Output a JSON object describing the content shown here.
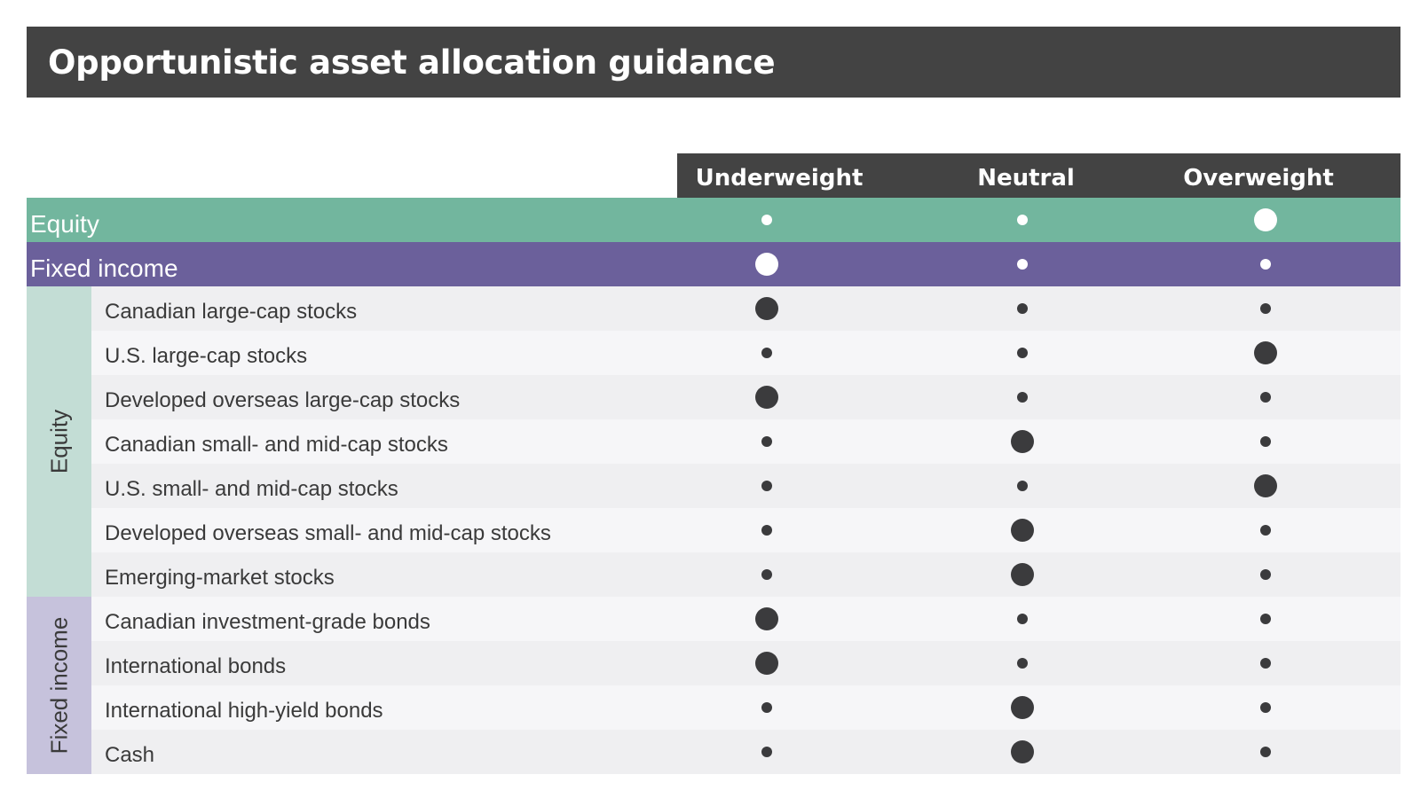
{
  "title": "Opportunistic asset allocation guidance",
  "colors": {
    "header_bg": "#434343",
    "equity_summary": "#72b69e",
    "fixed_income_summary": "#6b609b",
    "equity_group": "#c3ddd5",
    "fixed_income_group": "#c6c2dc",
    "row_a": "#efeff1",
    "row_b": "#f6f6f8",
    "dot_dark": "#3b3b3d",
    "dot_light": "#ffffff"
  },
  "chart_data": {
    "type": "table",
    "columns": [
      "Underweight",
      "Neutral",
      "Overweight"
    ],
    "summary_rows": [
      {
        "label": "Equity",
        "selected": "Overweight"
      },
      {
        "label": "Fixed income",
        "selected": "Underweight"
      }
    ],
    "groups": [
      {
        "name": "Equity",
        "rows": [
          {
            "label": "Canadian large-cap stocks",
            "selected": "Underweight"
          },
          {
            "label": "U.S. large-cap stocks",
            "selected": "Overweight"
          },
          {
            "label": "Developed overseas large-cap stocks",
            "selected": "Underweight"
          },
          {
            "label": "Canadian small- and mid-cap stocks",
            "selected": "Neutral"
          },
          {
            "label": "U.S. small- and mid-cap stocks",
            "selected": "Overweight"
          },
          {
            "label": "Developed overseas small- and mid-cap stocks",
            "selected": "Neutral"
          },
          {
            "label": "Emerging-market stocks",
            "selected": "Neutral"
          }
        ]
      },
      {
        "name": "Fixed income",
        "rows": [
          {
            "label": "Canadian investment-grade bonds",
            "selected": "Underweight"
          },
          {
            "label": "International bonds",
            "selected": "Underweight"
          },
          {
            "label": "International high-yield bonds",
            "selected": "Neutral"
          },
          {
            "label": "Cash",
            "selected": "Neutral"
          }
        ]
      }
    ]
  }
}
